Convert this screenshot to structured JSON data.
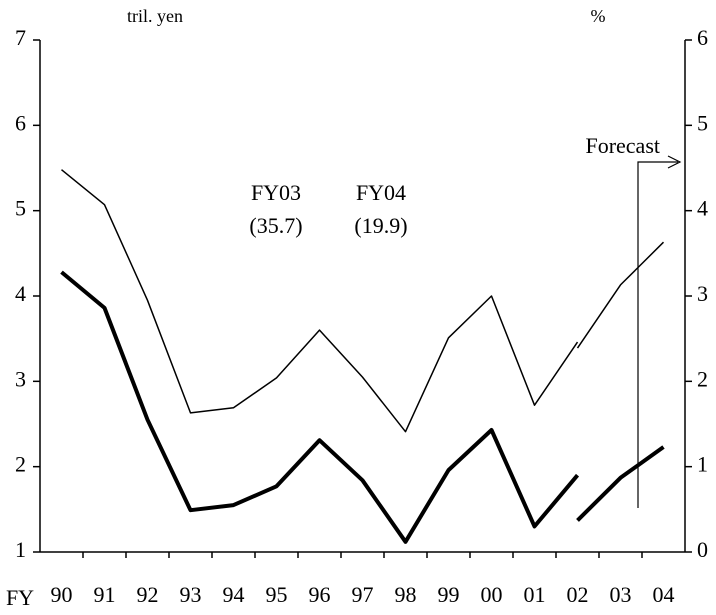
{
  "chart_data": {
    "type": "line",
    "categories": [
      "90",
      "91",
      "92",
      "93",
      "94",
      "95",
      "96",
      "97",
      "98",
      "99",
      "00",
      "01",
      "02",
      "03",
      "04"
    ],
    "x_label": "FY",
    "y_label": "tril. yen",
    "y2_label": "%",
    "ylim": [
      1,
      7
    ],
    "yticks": [
      1,
      2,
      3,
      4,
      5,
      6,
      7
    ],
    "y2lim": [
      0,
      6
    ],
    "y2ticks": [
      0,
      1,
      2,
      3,
      4,
      5,
      6
    ],
    "series": [
      {
        "color": "#000000",
        "line_width": 4,
        "values": [
          4.28,
          3.86,
          2.55,
          1.49,
          1.55,
          1.77,
          2.31,
          1.84,
          1.12,
          1.96,
          2.43,
          1.3,
          1.9,
          null,
          null
        ]
      },
      {
        "color": "#000000",
        "line_width": 4,
        "values": [
          null,
          null,
          null,
          null,
          null,
          null,
          null,
          null,
          null,
          null,
          null,
          null,
          1.37,
          1.87,
          2.23
        ]
      },
      {
        "color": "#000000",
        "line_width": 1.5,
        "axis": "y2",
        "values": [
          4.48,
          4.07,
          2.95,
          1.63,
          1.69,
          2.04,
          2.6,
          2.05,
          1.41,
          2.51,
          3.0,
          1.72,
          2.46,
          null,
          null
        ]
      },
      {
        "color": "#000000",
        "line_width": 1.5,
        "axis": "y2",
        "values": [
          null,
          null,
          null,
          null,
          null,
          null,
          null,
          null,
          null,
          null,
          null,
          null,
          2.39,
          3.13,
          3.63
        ]
      }
    ],
    "annotations": [
      "FY03",
      "(35.7)",
      "FY04",
      "(19.9)",
      "Forecast"
    ]
  }
}
